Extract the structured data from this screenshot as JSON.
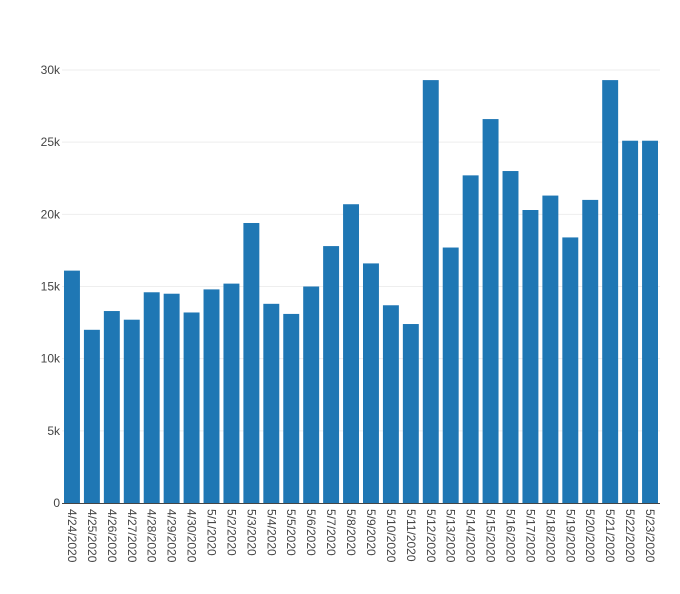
{
  "chart_data": {
    "type": "bar",
    "title": "",
    "xlabel": "",
    "ylabel": "",
    "categories": [
      "4/24/2020",
      "4/25/2020",
      "4/26/2020",
      "4/27/2020",
      "4/28/2020",
      "4/29/2020",
      "4/30/2020",
      "5/1/2020",
      "5/2/2020",
      "5/3/2020",
      "5/4/2020",
      "5/5/2020",
      "5/6/2020",
      "5/7/2020",
      "5/8/2020",
      "5/9/2020",
      "5/10/2020",
      "5/11/2020",
      "5/12/2020",
      "5/13/2020",
      "5/14/2020",
      "5/15/2020",
      "5/16/2020",
      "5/17/2020",
      "5/18/2020",
      "5/19/2020",
      "5/20/2020",
      "5/21/2020",
      "5/22/2020",
      "5/23/2020"
    ],
    "values": [
      16100,
      12000,
      13300,
      12700,
      14600,
      14500,
      13200,
      14800,
      15200,
      19400,
      13800,
      13100,
      15000,
      17800,
      20700,
      16600,
      13700,
      12400,
      29300,
      17700,
      22700,
      26600,
      23000,
      20300,
      21300,
      18400,
      21000,
      29300,
      25100,
      25100
    ],
    "ylim": [
      0,
      30000
    ],
    "yticks": [
      0,
      5000,
      10000,
      15000,
      20000,
      25000,
      30000
    ],
    "ytick_labels": [
      "0",
      "5k",
      "10k",
      "15k",
      "20k",
      "25k",
      "30k"
    ],
    "grid": true,
    "bar_color": "#1f77b4"
  }
}
